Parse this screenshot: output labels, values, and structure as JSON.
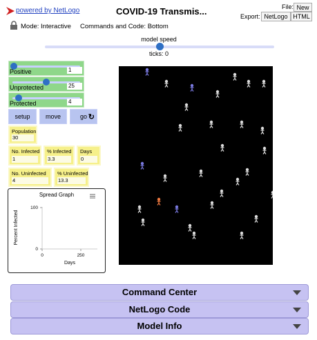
{
  "header": {
    "powered": "powered by NetLogo",
    "title": "COVID-19 Transmis...",
    "file": "File:",
    "new": "New",
    "export": "Export:",
    "netlogo": "NetLogo",
    "html": "HTML"
  },
  "mode": {
    "mode": "Mode: Interactive",
    "commands": "Commands and Code: Bottom"
  },
  "speed": {
    "label": "model speed",
    "ticks": "ticks: 0"
  },
  "sliders": [
    {
      "label": "Positive",
      "value": 1
    },
    {
      "label": "Unprotected",
      "value": 25
    },
    {
      "label": "Protected",
      "value": 4
    }
  ],
  "buttons": [
    "setup",
    "move",
    "go"
  ],
  "monitors": [
    {
      "label": "Population",
      "value": 30
    },
    {
      "label": "No. Infected",
      "value": 1
    },
    {
      "label": "% Infected",
      "value": 3.3
    },
    {
      "label": "Days",
      "value": 0
    },
    {
      "label": "No. Uninfected",
      "value": 4
    },
    {
      "label": "% Uninfected",
      "value": 13.3
    }
  ],
  "plot": {
    "title": "Spread Graph",
    "ylabel": "Percent Infected",
    "xlabel": "Days",
    "yticks": [
      0,
      100
    ],
    "xticks": [
      0,
      250
    ]
  },
  "panels": [
    "Command Center",
    "NetLogo Code",
    "Model Info"
  ]
}
